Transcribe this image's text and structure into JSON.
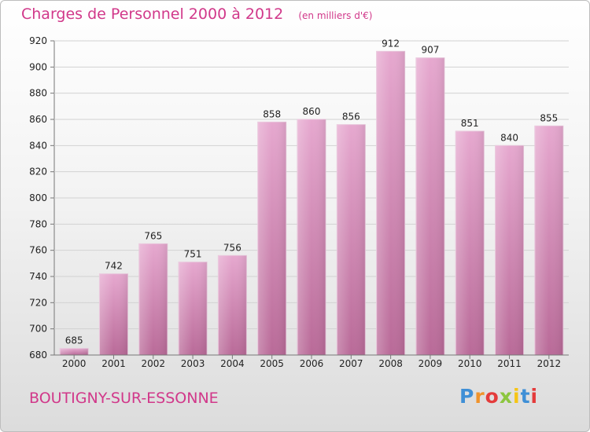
{
  "chart_data": {
    "type": "bar",
    "title": "Charges de Personnel 2000 à 2012",
    "subtitle": "(en milliers d'€)",
    "categories": [
      "2000",
      "2001",
      "2002",
      "2003",
      "2004",
      "2005",
      "2006",
      "2007",
      "2008",
      "2009",
      "2010",
      "2011",
      "2012"
    ],
    "values": [
      685,
      742,
      765,
      751,
      756,
      858,
      860,
      856,
      912,
      907,
      851,
      840,
      855
    ],
    "ylim": [
      680,
      920
    ],
    "yticks": [
      680,
      700,
      720,
      740,
      760,
      780,
      800,
      820,
      840,
      860,
      880,
      900,
      920
    ],
    "grid": true,
    "xlabel": "",
    "ylabel": "",
    "bar_color": "#c9639f",
    "title_color": "#d1388a"
  },
  "footer": {
    "commune": "BOUTIGNY-SUR-ESSONNE",
    "logo_letters": [
      "P",
      "r",
      "o",
      "x",
      "i",
      "t",
      "i"
    ],
    "logo_colors": [
      "#3f8fd6",
      "#f0932b",
      "#e43b3b",
      "#8cc63f",
      "#f6c515",
      "#3f8fd6",
      "#e43b3b"
    ]
  }
}
